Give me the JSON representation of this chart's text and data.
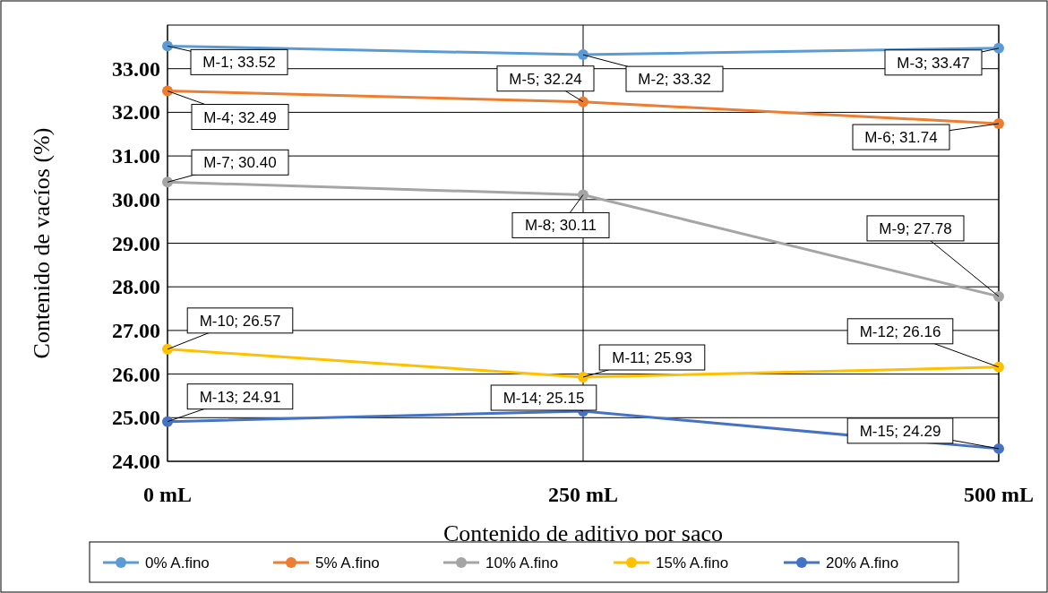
{
  "chart_data": {
    "type": "line",
    "xlabel": "Contenido de aditivo por saco",
    "ylabel": "Contenido de vacíos (%)",
    "categories": [
      "0 mL",
      "250 mL",
      "500 mL"
    ],
    "ylim": [
      24,
      34
    ],
    "yticks": [
      {
        "value": 24,
        "label": "24.00"
      },
      {
        "value": 25,
        "label": "25.00"
      },
      {
        "value": 26,
        "label": "26.00"
      },
      {
        "value": 27,
        "label": "27.00"
      },
      {
        "value": 28,
        "label": "28.00"
      },
      {
        "value": 29,
        "label": "29.00"
      },
      {
        "value": 30,
        "label": "30.00"
      },
      {
        "value": 31,
        "label": "31.00"
      },
      {
        "value": 32,
        "label": "32.00"
      },
      {
        "value": 33,
        "label": "33.00"
      }
    ],
    "grid": true,
    "legend": "bottom",
    "marker": "circle",
    "line_style": "solid",
    "series": [
      {
        "name": "0% A.fino",
        "color": "#5b9bd5",
        "values": [
          33.52,
          33.32,
          33.47
        ],
        "value_labels": [
          "M-1; 33.52",
          "M-2; 33.32",
          "M-3; 33.47"
        ]
      },
      {
        "name": "5% A.fino",
        "color": "#ed7d31",
        "values": [
          32.49,
          32.24,
          31.74
        ],
        "value_labels": [
          "M-4; 32.49",
          "M-5; 32.24",
          "M-6; 31.74"
        ]
      },
      {
        "name": "10% A.fino",
        "color": "#a5a5a5",
        "values": [
          30.4,
          30.11,
          27.78
        ],
        "value_labels": [
          "M-7; 30.40",
          "M-8; 30.11",
          "M-9; 27.78"
        ]
      },
      {
        "name": "15% A.fino",
        "color": "#ffc000",
        "values": [
          26.57,
          25.93,
          26.16
        ],
        "value_labels": [
          "M-10; 26.57",
          "M-11; 25.93",
          "M-12; 26.16"
        ]
      },
      {
        "name": "20% A.fino",
        "color": "#4472c4",
        "values": [
          24.91,
          25.15,
          24.29
        ],
        "value_labels": [
          "M-13; 24.91",
          "M-14; 25.15",
          "M-15; 24.29"
        ]
      }
    ]
  }
}
